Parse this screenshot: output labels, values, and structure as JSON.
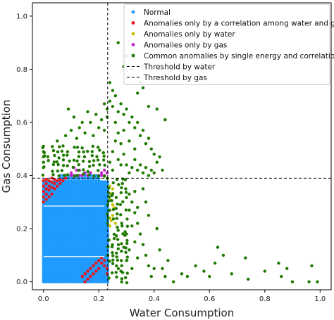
{
  "chart_data": {
    "type": "scatter",
    "xlabel": "Water Consumption",
    "ylabel": "Gas Consumption",
    "xlim": [
      -0.04,
      1.04
    ],
    "ylim": [
      -0.03,
      1.05
    ],
    "x_ticks": [
      "0.0",
      "0.2",
      "0.4",
      "0.6",
      "0.8",
      "1.0"
    ],
    "y_ticks": [
      "0.0",
      "0.2",
      "0.4",
      "0.6",
      "0.8",
      "1.0"
    ],
    "thresholds": {
      "water": 0.232,
      "gas": 0.39,
      "water_label": "Threshold by water",
      "gas_label": "Threshold by gas"
    },
    "legend_position": "top-right",
    "colors": {
      "normal": "#1f9bff",
      "correlation": "#e8141c",
      "water": "#c9c000",
      "gas": "#c020c8",
      "common": "#1f7a00"
    },
    "series": [
      {
        "key": "normal",
        "name": "Normal",
        "color": "#1f9bff",
        "regions": [
          {
            "x0": 0.0,
            "x1": 0.232,
            "y0": 0.0,
            "y1": 0.38,
            "step": 0.008
          },
          {
            "x0": 0.06,
            "x1": 0.2,
            "y0": 0.38,
            "y1": 0.4,
            "step": 0.01
          }
        ],
        "points": []
      },
      {
        "key": "correlation",
        "name": "Anomalies only by a correlation among water and gas",
        "color": "#e8141c",
        "points": [
          [
            0.0,
            0.3
          ],
          [
            0.0,
            0.32
          ],
          [
            0.0,
            0.34
          ],
          [
            0.0,
            0.36
          ],
          [
            0.0,
            0.38
          ],
          [
            0.01,
            0.31
          ],
          [
            0.01,
            0.33
          ],
          [
            0.01,
            0.35
          ],
          [
            0.01,
            0.37
          ],
          [
            0.01,
            0.385
          ],
          [
            0.02,
            0.32
          ],
          [
            0.02,
            0.345
          ],
          [
            0.02,
            0.36
          ],
          [
            0.02,
            0.38
          ],
          [
            0.03,
            0.33
          ],
          [
            0.03,
            0.355
          ],
          [
            0.03,
            0.375
          ],
          [
            0.03,
            0.39
          ],
          [
            0.04,
            0.35
          ],
          [
            0.04,
            0.37
          ],
          [
            0.04,
            0.385
          ],
          [
            0.05,
            0.36
          ],
          [
            0.05,
            0.38
          ],
          [
            0.06,
            0.37
          ],
          [
            0.06,
            0.385
          ],
          [
            0.07,
            0.38
          ],
          [
            0.08,
            0.39
          ],
          [
            0.14,
            0.02
          ],
          [
            0.15,
            0.03
          ],
          [
            0.16,
            0.04
          ],
          [
            0.17,
            0.05
          ],
          [
            0.18,
            0.06
          ],
          [
            0.19,
            0.07
          ],
          [
            0.2,
            0.08
          ],
          [
            0.21,
            0.07
          ],
          [
            0.21,
            0.09
          ],
          [
            0.22,
            0.06
          ],
          [
            0.22,
            0.08
          ],
          [
            0.23,
            0.05
          ],
          [
            0.2,
            0.05
          ],
          [
            0.19,
            0.04
          ],
          [
            0.18,
            0.03
          ],
          [
            0.17,
            0.02
          ],
          [
            0.16,
            0.01
          ],
          [
            0.15,
            0.0
          ],
          [
            0.23,
            0.03
          ]
        ]
      },
      {
        "key": "water",
        "name": "Anomalies only by water",
        "color": "#c9c000",
        "points": [
          [
            0.24,
            0.21
          ],
          [
            0.245,
            0.23
          ],
          [
            0.25,
            0.25
          ],
          [
            0.24,
            0.27
          ],
          [
            0.26,
            0.22
          ],
          [
            0.25,
            0.29
          ],
          [
            0.24,
            0.31
          ],
          [
            0.245,
            0.33
          ],
          [
            0.25,
            0.35
          ],
          [
            0.24,
            0.36
          ],
          [
            0.255,
            0.28
          ],
          [
            0.24,
            0.24
          ]
        ]
      },
      {
        "key": "gas",
        "name": "Anomalies only by gas",
        "color": "#c020c8",
        "points": [
          [
            0.1,
            0.41
          ],
          [
            0.11,
            0.43
          ],
          [
            0.12,
            0.4
          ],
          [
            0.13,
            0.42
          ],
          [
            0.14,
            0.4
          ],
          [
            0.15,
            0.41
          ],
          [
            0.16,
            0.4
          ],
          [
            0.17,
            0.41
          ],
          [
            0.11,
            0.4
          ],
          [
            0.12,
            0.42
          ],
          [
            0.13,
            0.4
          ],
          [
            0.2,
            0.4
          ],
          [
            0.21,
            0.41
          ],
          [
            0.22,
            0.4
          ],
          [
            0.23,
            0.41
          ],
          [
            0.22,
            0.42
          ],
          [
            0.21,
            0.4
          ],
          [
            0.1,
            0.4
          ]
        ]
      },
      {
        "key": "common",
        "name": "Common anomalies by single energy and correlation",
        "color": "#1f7a00",
        "region_above_gas": {
          "x0": 0.0,
          "x1": 0.232,
          "y0": 0.4,
          "y1": 0.52,
          "step": 0.018
        },
        "region_right_water": {
          "x0": 0.235,
          "x1": 0.3,
          "y0": 0.0,
          "y1": 0.39,
          "step": 0.016
        },
        "points": [
          [
            0.0,
            0.51
          ],
          [
            0.0,
            0.49
          ],
          [
            0.0,
            0.47
          ],
          [
            0.0,
            0.45
          ],
          [
            0.0,
            0.43
          ],
          [
            0.05,
            0.53
          ],
          [
            0.08,
            0.55
          ],
          [
            0.1,
            0.57
          ],
          [
            0.12,
            0.54
          ],
          [
            0.13,
            0.58
          ],
          [
            0.15,
            0.56
          ],
          [
            0.17,
            0.6
          ],
          [
            0.18,
            0.55
          ],
          [
            0.2,
            0.58
          ],
          [
            0.21,
            0.61
          ],
          [
            0.22,
            0.57
          ],
          [
            0.19,
            0.63
          ],
          [
            0.14,
            0.6
          ],
          [
            0.11,
            0.62
          ],
          [
            0.09,
            0.65
          ],
          [
            0.16,
            0.64
          ],
          [
            0.23,
            0.62
          ],
          [
            0.23,
            0.65
          ],
          [
            0.22,
            0.67
          ],
          [
            0.24,
            0.68
          ],
          [
            0.25,
            0.66
          ],
          [
            0.26,
            0.7
          ],
          [
            0.27,
            0.64
          ],
          [
            0.28,
            0.67
          ],
          [
            0.29,
            0.63
          ],
          [
            0.3,
            0.65
          ],
          [
            0.31,
            0.6
          ],
          [
            0.32,
            0.62
          ],
          [
            0.33,
            0.58
          ],
          [
            0.34,
            0.6
          ],
          [
            0.35,
            0.55
          ],
          [
            0.36,
            0.57
          ],
          [
            0.37,
            0.52
          ],
          [
            0.38,
            0.54
          ],
          [
            0.39,
            0.5
          ],
          [
            0.4,
            0.48
          ],
          [
            0.41,
            0.45
          ],
          [
            0.42,
            0.47
          ],
          [
            0.43,
            0.42
          ],
          [
            0.36,
            0.73
          ],
          [
            0.34,
            0.71
          ],
          [
            0.38,
            0.66
          ],
          [
            0.41,
            0.65
          ],
          [
            0.44,
            0.61
          ],
          [
            0.27,
            0.9
          ],
          [
            0.3,
            0.85
          ],
          [
            0.29,
            0.81
          ],
          [
            0.32,
            0.8
          ],
          [
            0.35,
            0.75
          ],
          [
            0.25,
            0.72
          ],
          [
            0.24,
            0.75
          ],
          [
            0.26,
            0.6
          ],
          [
            0.27,
            0.56
          ],
          [
            0.28,
            0.52
          ],
          [
            0.29,
            0.48
          ],
          [
            0.3,
            0.44
          ],
          [
            0.31,
            0.41
          ],
          [
            0.32,
            0.43
          ],
          [
            0.33,
            0.46
          ],
          [
            0.34,
            0.42
          ],
          [
            0.35,
            0.44
          ],
          [
            0.36,
            0.41
          ],
          [
            0.37,
            0.43
          ],
          [
            0.38,
            0.4
          ],
          [
            0.39,
            0.42
          ],
          [
            0.4,
            0.41
          ],
          [
            0.33,
            0.5
          ],
          [
            0.31,
            0.53
          ],
          [
            0.29,
            0.57
          ],
          [
            0.26,
            0.53
          ],
          [
            0.25,
            0.49
          ],
          [
            0.24,
            0.45
          ],
          [
            0.25,
            0.42
          ],
          [
            0.27,
            0.46
          ],
          [
            0.28,
            0.44
          ],
          [
            0.31,
            0.33
          ],
          [
            0.32,
            0.3
          ],
          [
            0.33,
            0.26
          ],
          [
            0.34,
            0.22
          ],
          [
            0.35,
            0.18
          ],
          [
            0.36,
            0.14
          ],
          [
            0.37,
            0.1
          ],
          [
            0.38,
            0.06
          ],
          [
            0.39,
            0.02
          ],
          [
            0.4,
            0.05
          ],
          [
            0.31,
            0.27
          ],
          [
            0.32,
            0.21
          ],
          [
            0.33,
            0.15
          ],
          [
            0.34,
            0.09
          ],
          [
            0.31,
            0.12
          ],
          [
            0.32,
            0.05
          ],
          [
            0.3,
            0.18
          ],
          [
            0.3,
            0.08
          ],
          [
            0.33,
            0.34
          ],
          [
            0.34,
            0.28
          ],
          [
            0.29,
            0.13
          ],
          [
            0.28,
            0.04
          ],
          [
            0.41,
            0.2
          ],
          [
            0.42,
            0.12
          ],
          [
            0.43,
            0.05
          ],
          [
            0.44,
            0.02
          ],
          [
            0.47,
            0.0
          ],
          [
            0.5,
            0.03
          ],
          [
            0.52,
            0.02
          ],
          [
            0.55,
            0.06
          ],
          [
            0.58,
            0.04
          ],
          [
            0.6,
            0.02
          ],
          [
            0.62,
            0.07
          ],
          [
            0.65,
            0.1
          ],
          [
            0.68,
            0.03
          ],
          [
            0.73,
            0.09
          ],
          [
            0.85,
            0.07
          ],
          [
            0.86,
            0.02
          ],
          [
            0.88,
            0.05
          ],
          [
            0.9,
            0.0
          ],
          [
            0.96,
            0.0
          ],
          [
            0.99,
            0.0
          ],
          [
            0.97,
            0.06
          ],
          [
            0.8,
            0.04
          ],
          [
            0.74,
            0.01
          ],
          [
            0.63,
            0.13
          ],
          [
            0.45,
            0.08
          ],
          [
            0.37,
            0.3
          ],
          [
            0.36,
            0.35
          ],
          [
            0.38,
            0.25
          ]
        ]
      }
    ]
  }
}
